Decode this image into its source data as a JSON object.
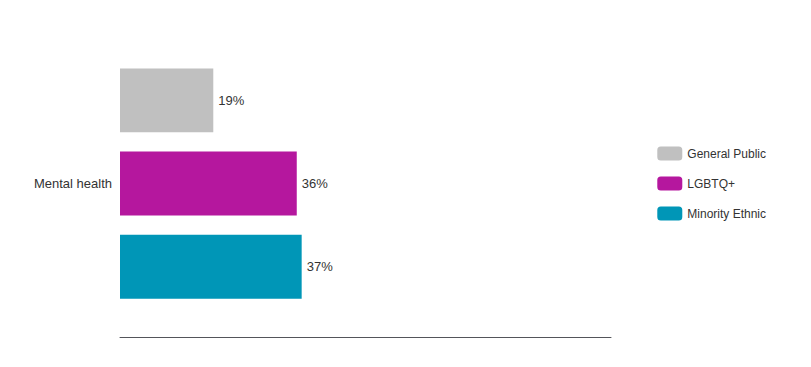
{
  "chart_data": {
    "type": "bar",
    "orientation": "horizontal",
    "categories": [
      "Mental health"
    ],
    "series": [
      {
        "name": "General Public",
        "color": "#c0c0c0",
        "values": [
          19
        ],
        "value_labels": [
          "19%"
        ]
      },
      {
        "name": "LGBTQ+",
        "color": "#b5179e",
        "values": [
          36
        ],
        "value_labels": [
          "36%"
        ]
      },
      {
        "name": "Minority Ethnic",
        "color": "#0096b7",
        "values": [
          37
        ],
        "value_labels": [
          "37%"
        ]
      }
    ],
    "xlim": [
      0,
      100
    ],
    "grid": false,
    "legend": "right",
    "data_labels": true,
    "tick_labels": "y"
  }
}
